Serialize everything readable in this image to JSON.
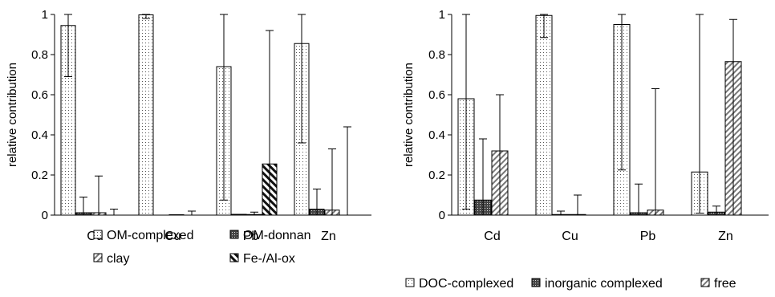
{
  "chart_data": [
    {
      "type": "bar",
      "ylabel": "relative contribution",
      "ylim": [
        0,
        1
      ],
      "yticks": [
        "0",
        "0.2",
        "0.4",
        "0.6",
        "0.8",
        "1"
      ],
      "categories": [
        "Cd",
        "Cu",
        "Pb",
        "Zn"
      ],
      "legend_position": "bottom",
      "series": [
        {
          "name": "OM-complexed",
          "pattern": "dots",
          "values": [
            0.945,
            0.998,
            0.74,
            0.855
          ],
          "err_low": [
            0.69,
            0.98,
            0.075,
            0.36
          ],
          "err_high": [
            1.0,
            1.0,
            1.0,
            1.0
          ]
        },
        {
          "name": "OM-donnan",
          "pattern": "cross",
          "values": [
            0.012,
            0.0,
            0.004,
            0.03
          ],
          "err_low": [
            0.0,
            0.0,
            0.0,
            0.0
          ],
          "err_high": [
            0.09,
            0.0,
            0.0,
            0.13
          ]
        },
        {
          "name": "clay",
          "pattern": "hatch-light",
          "values": [
            0.012,
            0.002,
            0.003,
            0.025
          ],
          "err_low": [
            0.0,
            0.0,
            0.0,
            0.0
          ],
          "err_high": [
            0.195,
            0.0,
            0.015,
            0.33
          ]
        },
        {
          "name": "Fe-/Al-ox",
          "pattern": "hatch-dark",
          "values": [
            0.0,
            0.0,
            0.255,
            0.0
          ],
          "err_low": [
            0.0,
            0.0,
            0.0,
            0.0
          ],
          "err_high": [
            0.03,
            0.02,
            0.92,
            0.44
          ]
        }
      ]
    },
    {
      "type": "bar",
      "ylabel": "relative contribution",
      "ylim": [
        0,
        1
      ],
      "yticks": [
        "0",
        "0.2",
        "0.4",
        "0.6",
        "0.8",
        "1"
      ],
      "categories": [
        "Cd",
        "Cu",
        "Pb",
        "Zn"
      ],
      "legend_position": "bottom",
      "series": [
        {
          "name": "DOC-complexed",
          "pattern": "dots",
          "values": [
            0.58,
            0.995,
            0.95,
            0.215
          ],
          "err_low": [
            0.03,
            0.885,
            0.225,
            0.01
          ],
          "err_high": [
            1.0,
            1.0,
            1.0,
            1.0
          ]
        },
        {
          "name": "inorganic complexed",
          "pattern": "cross",
          "values": [
            0.075,
            0.003,
            0.012,
            0.015
          ],
          "err_low": [
            0.0,
            0.0,
            0.0,
            0.0
          ],
          "err_high": [
            0.38,
            0.02,
            0.155,
            0.045
          ]
        },
        {
          "name": "free",
          "pattern": "hatch-light",
          "values": [
            0.32,
            0.003,
            0.025,
            0.765
          ],
          "err_low": [
            0.0,
            0.0,
            0.0,
            0.0
          ],
          "err_high": [
            0.6,
            0.1,
            0.63,
            0.975
          ]
        }
      ]
    }
  ]
}
